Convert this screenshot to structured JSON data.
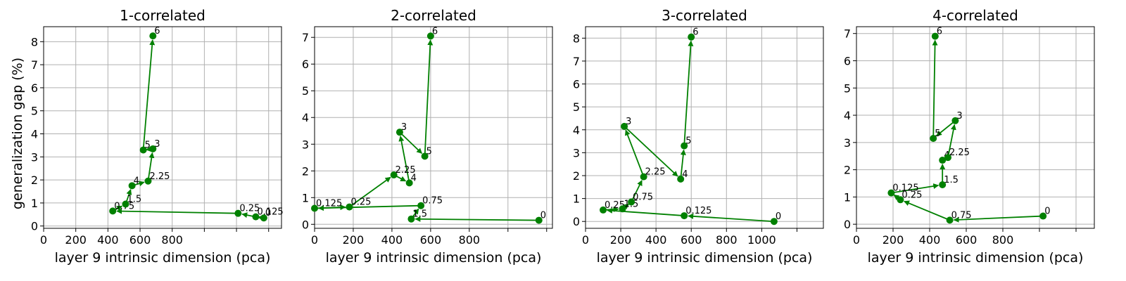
{
  "chart_data": {
    "type": "line",
    "ylabel": "generalization gap (%)",
    "xlabel": "layer 9 intrinsic dimension (pca)",
    "grid": true,
    "series_color": "#008000",
    "panels": [
      {
        "title": "1-correlated",
        "xlabel": "layer 9 intrinsic dimension (pca)",
        "xlim": [
          0,
          1480
        ],
        "ylim": [
          -0.1,
          8.65
        ],
        "xticks": [
          0,
          200,
          400,
          600,
          800,
          1000,
          1200,
          1400
        ],
        "xtick_labels": [
          "0",
          "200",
          "400",
          "600",
          "800",
          "",
          "",
          ""
        ],
        "yticks": [
          0,
          1,
          2,
          3,
          4,
          5,
          6,
          7,
          8
        ],
        "ytick_labels": [
          "0",
          "1",
          "2",
          "3",
          "4",
          "5",
          "6",
          "7",
          "8"
        ],
        "points": [
          {
            "label": "0",
            "x": 1370,
            "y": 0.35
          },
          {
            "label": "0.125",
            "x": 1320,
            "y": 0.4
          },
          {
            "label": "0.25",
            "x": 1210,
            "y": 0.55
          },
          {
            "label": "0.75",
            "x": 430,
            "y": 0.65
          },
          {
            "label": "1.5",
            "x": 510,
            "y": 0.95
          },
          {
            "label": "4",
            "x": 550,
            "y": 1.75
          },
          {
            "label": "2.25",
            "x": 650,
            "y": 1.95
          },
          {
            "label": "3",
            "x": 680,
            "y": 3.35
          },
          {
            "label": "5",
            "x": 620,
            "y": 3.3
          },
          {
            "label": "6",
            "x": 680,
            "y": 8.25
          }
        ]
      },
      {
        "title": "2-correlated",
        "xlabel": "layer 9 intrinsic dimension (pca)",
        "xlim": [
          0,
          1230
        ],
        "ylim": [
          -0.15,
          7.4
        ],
        "xticks": [
          0,
          200,
          400,
          600,
          800,
          1000,
          1200
        ],
        "xtick_labels": [
          "0",
          "200",
          "400",
          "600",
          "800",
          "",
          ""
        ],
        "yticks": [
          0,
          1,
          2,
          3,
          4,
          5,
          6,
          7
        ],
        "ytick_labels": [
          "0",
          "1",
          "2",
          "3",
          "4",
          "5",
          "6",
          "7"
        ],
        "points": [
          {
            "label": "0",
            "x": 1160,
            "y": 0.15
          },
          {
            "label": "1.5",
            "x": 500,
            "y": 0.2
          },
          {
            "label": "0.75",
            "x": 550,
            "y": 0.7
          },
          {
            "label": "0.125",
            "x": 0,
            "y": 0.6
          },
          {
            "label": "0.25",
            "x": 180,
            "y": 0.65
          },
          {
            "label": "2.25",
            "x": 410,
            "y": 1.85
          },
          {
            "label": "4",
            "x": 490,
            "y": 1.55
          },
          {
            "label": "3",
            "x": 440,
            "y": 3.45
          },
          {
            "label": "5",
            "x": 570,
            "y": 2.55
          },
          {
            "label": "6",
            "x": 600,
            "y": 7.05
          }
        ]
      },
      {
        "title": "3-correlated",
        "xlabel": "layer 9 intrinsic dimension (pca)",
        "xlim": [
          0,
          1350
        ],
        "ylim": [
          -0.3,
          8.5
        ],
        "xticks": [
          0,
          200,
          400,
          600,
          800,
          1000,
          1200
        ],
        "xtick_labels": [
          "0",
          "200",
          "400",
          "600",
          "800",
          "1000",
          ""
        ],
        "yticks": [
          0,
          1,
          2,
          3,
          4,
          5,
          6,
          7,
          8
        ],
        "ytick_labels": [
          "0",
          "1",
          "2",
          "3",
          "4",
          "5",
          "6",
          "7",
          "8"
        ],
        "points": [
          {
            "label": "0",
            "x": 1070,
            "y": 0.0
          },
          {
            "label": "0.125",
            "x": 560,
            "y": 0.25
          },
          {
            "label": "0.25",
            "x": 100,
            "y": 0.5
          },
          {
            "label": "1.5",
            "x": 210,
            "y": 0.55
          },
          {
            "label": "0.75",
            "x": 260,
            "y": 0.85
          },
          {
            "label": "2.25",
            "x": 330,
            "y": 1.95
          },
          {
            "label": "3",
            "x": 220,
            "y": 4.15
          },
          {
            "label": "4",
            "x": 540,
            "y": 1.85
          },
          {
            "label": "5",
            "x": 560,
            "y": 3.3
          },
          {
            "label": "6",
            "x": 600,
            "y": 8.05
          }
        ]
      },
      {
        "title": "4-correlated",
        "xlabel": "layer 9 intrinsic dimension (pca)",
        "xlim": [
          0,
          1300
        ],
        "ylim": [
          -0.15,
          7.25
        ],
        "xticks": [
          0,
          200,
          400,
          600,
          800,
          1000,
          1200
        ],
        "xtick_labels": [
          "0",
          "200",
          "400",
          "600",
          "800",
          "",
          ""
        ],
        "yticks": [
          0,
          1,
          2,
          3,
          4,
          5,
          6,
          7
        ],
        "ytick_labels": [
          "0",
          "1",
          "2",
          "3",
          "4",
          "5",
          "6",
          "7"
        ],
        "points": [
          {
            "label": "0",
            "x": 1020,
            "y": 0.3
          },
          {
            "label": "0.75",
            "x": 510,
            "y": 0.15
          },
          {
            "label": "0.25",
            "x": 240,
            "y": 0.9
          },
          {
            "label": "0.125",
            "x": 190,
            "y": 1.15
          },
          {
            "label": "1.5",
            "x": 470,
            "y": 1.45
          },
          {
            "label": "4",
            "x": 470,
            "y": 2.35
          },
          {
            "label": "2.25",
            "x": 500,
            "y": 2.45
          },
          {
            "label": "3",
            "x": 540,
            "y": 3.8
          },
          {
            "label": "5",
            "x": 420,
            "y": 3.15
          },
          {
            "label": "6",
            "x": 430,
            "y": 6.9
          }
        ]
      }
    ]
  }
}
